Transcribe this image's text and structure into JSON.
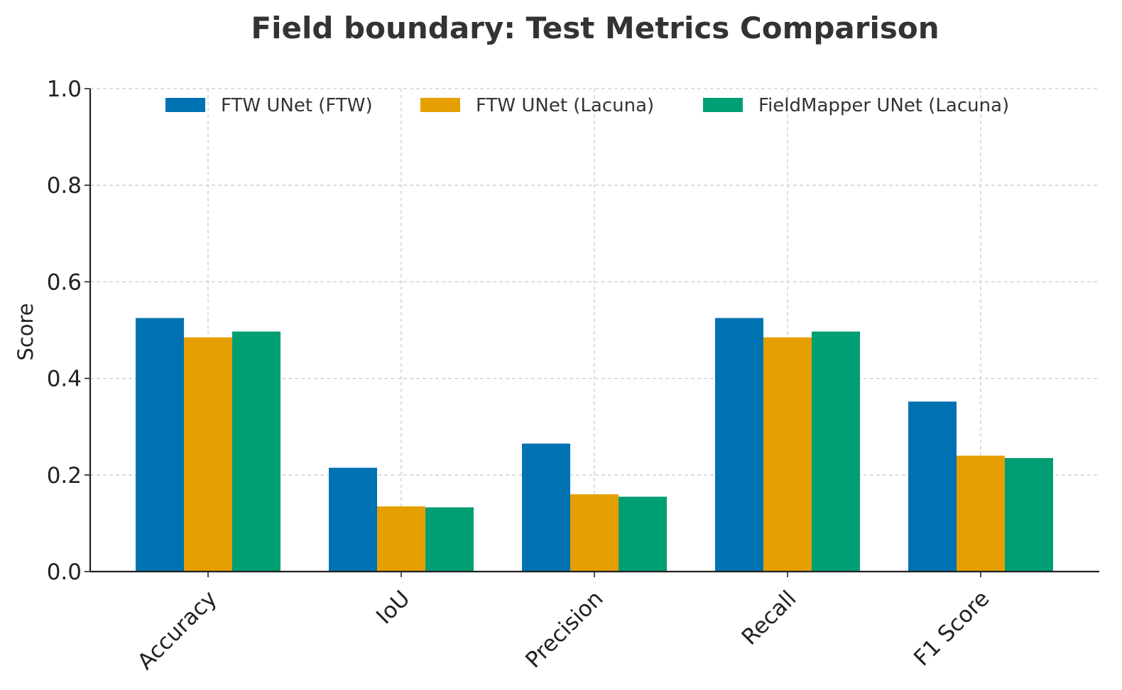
{
  "chart_data": {
    "type": "bar",
    "title": "Field boundary: Test Metrics Comparison",
    "xlabel": "",
    "ylabel": "Score",
    "ylim": [
      0,
      1.0
    ],
    "yticks": [
      "0.0",
      "0.2",
      "0.4",
      "0.6",
      "0.8",
      "1.0"
    ],
    "categories": [
      "Accuracy",
      "IoU",
      "Precision",
      "Recall",
      "F1 Score"
    ],
    "series": [
      {
        "name": "FTW UNet (FTW)",
        "color": "#0072B2",
        "values": [
          0.525,
          0.215,
          0.265,
          0.525,
          0.352
        ]
      },
      {
        "name": "FTW UNet (Lacuna)",
        "color": "#E69F00",
        "values": [
          0.485,
          0.135,
          0.16,
          0.485,
          0.24
        ]
      },
      {
        "name": "FieldMapper UNet (Lacuna)",
        "color": "#009E73",
        "values": [
          0.497,
          0.133,
          0.155,
          0.497,
          0.235
        ]
      }
    ],
    "grid": true,
    "legend_position": "top-center"
  }
}
